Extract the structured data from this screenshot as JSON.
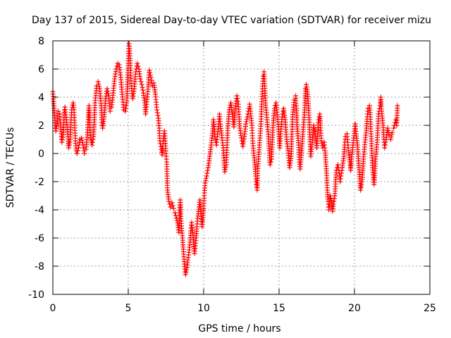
{
  "chart_data": {
    "type": "scatter",
    "title": "Day 137 of 2015, Sidereal Day-to-day VTEC variation (SDTVAR) for receiver mizu",
    "xlabel": "GPS time / hours",
    "ylabel": "SDTVAR / TECUs",
    "xlim": [
      0,
      25
    ],
    "ylim": [
      -10,
      8
    ],
    "x_ticks": [
      0,
      5,
      10,
      15,
      20,
      25
    ],
    "x_tick_labels": [
      "0",
      "5",
      "10",
      "15",
      "20",
      "25"
    ],
    "y_ticks": [
      8,
      6,
      4,
      2,
      0,
      -2,
      -4,
      -6,
      -8,
      -10
    ],
    "y_tick_labels": [
      "8",
      "6",
      "4",
      "2",
      "0",
      "-2",
      "-4",
      "-6",
      "-8",
      "-10"
    ],
    "grid": true,
    "marker": "+",
    "color": "#ff0000",
    "trace": [
      [
        0.0,
        4.4
      ],
      [
        0.05,
        3.7
      ],
      [
        0.1,
        2.9
      ],
      [
        0.15,
        2.0
      ],
      [
        0.2,
        1.6
      ],
      [
        0.3,
        2.3
      ],
      [
        0.35,
        3.0
      ],
      [
        0.45,
        2.8
      ],
      [
        0.5,
        2.2
      ],
      [
        0.55,
        1.4
      ],
      [
        0.6,
        0.8
      ],
      [
        0.7,
        1.5
      ],
      [
        0.75,
        2.9
      ],
      [
        0.8,
        3.3
      ],
      [
        0.9,
        2.4
      ],
      [
        1.0,
        1.2
      ],
      [
        1.05,
        0.4
      ],
      [
        1.15,
        1.0
      ],
      [
        1.2,
        2.2
      ],
      [
        1.25,
        3.1
      ],
      [
        1.35,
        3.6
      ],
      [
        1.4,
        3.1
      ],
      [
        1.45,
        2.0
      ],
      [
        1.5,
        0.9
      ],
      [
        1.55,
        0.2
      ],
      [
        1.6,
        0.0
      ],
      [
        1.7,
        0.4
      ],
      [
        1.8,
        1.0
      ],
      [
        1.9,
        1.1
      ],
      [
        2.0,
        0.6
      ],
      [
        2.1,
        0.0
      ],
      [
        2.2,
        0.3
      ],
      [
        2.3,
        1.5
      ],
      [
        2.35,
        2.6
      ],
      [
        2.4,
        3.4
      ],
      [
        2.45,
        2.2
      ],
      [
        2.5,
        1.1
      ],
      [
        2.6,
        0.6
      ],
      [
        2.7,
        1.2
      ],
      [
        2.75,
        2.4
      ],
      [
        2.8,
        3.6
      ],
      [
        2.9,
        4.8
      ],
      [
        3.0,
        5.1
      ],
      [
        3.1,
        4.6
      ],
      [
        3.2,
        3.4
      ],
      [
        3.25,
        2.4
      ],
      [
        3.3,
        1.8
      ],
      [
        3.4,
        2.6
      ],
      [
        3.5,
        3.9
      ],
      [
        3.6,
        4.6
      ],
      [
        3.7,
        4.1
      ],
      [
        3.8,
        3.0
      ],
      [
        3.9,
        3.3
      ],
      [
        4.0,
        4.3
      ],
      [
        4.1,
        5.3
      ],
      [
        4.2,
        6.0
      ],
      [
        4.3,
        6.4
      ],
      [
        4.4,
        6.3
      ],
      [
        4.5,
        5.4
      ],
      [
        4.6,
        4.2
      ],
      [
        4.7,
        3.1
      ],
      [
        4.8,
        3.0
      ],
      [
        4.9,
        3.6
      ],
      [
        5.0,
        6.4
      ],
      [
        5.05,
        7.8
      ],
      [
        5.1,
        7.1
      ],
      [
        5.15,
        5.9
      ],
      [
        5.2,
        4.8
      ],
      [
        5.3,
        3.9
      ],
      [
        5.4,
        4.6
      ],
      [
        5.5,
        5.8
      ],
      [
        5.6,
        6.4
      ],
      [
        5.7,
        6.0
      ],
      [
        5.8,
        5.3
      ],
      [
        5.9,
        4.9
      ],
      [
        6.0,
        4.3
      ],
      [
        6.1,
        3.6
      ],
      [
        6.15,
        2.8
      ],
      [
        6.2,
        3.3
      ],
      [
        6.3,
        4.4
      ],
      [
        6.4,
        5.9
      ],
      [
        6.5,
        5.4
      ],
      [
        6.6,
        4.8
      ],
      [
        6.7,
        5.0
      ],
      [
        6.8,
        4.2
      ],
      [
        6.9,
        3.1
      ],
      [
        7.0,
        2.5
      ],
      [
        7.05,
        1.8
      ],
      [
        7.1,
        0.9
      ],
      [
        7.2,
        0.3
      ],
      [
        7.25,
        -0.1
      ],
      [
        7.3,
        0.7
      ],
      [
        7.4,
        1.6
      ],
      [
        7.45,
        0.9
      ],
      [
        7.5,
        0.0
      ],
      [
        7.55,
        -0.6
      ],
      [
        7.6,
        -2.6
      ],
      [
        7.7,
        -3.4
      ],
      [
        7.8,
        -3.8
      ],
      [
        7.9,
        -3.5
      ],
      [
        8.0,
        -3.9
      ],
      [
        8.1,
        -4.2
      ],
      [
        8.2,
        -4.6
      ],
      [
        8.3,
        -5.1
      ],
      [
        8.35,
        -5.6
      ],
      [
        8.4,
        -4.4
      ],
      [
        8.45,
        -3.3
      ],
      [
        8.5,
        -4.8
      ],
      [
        8.6,
        -6.0
      ],
      [
        8.65,
        -6.8
      ],
      [
        8.7,
        -7.5
      ],
      [
        8.75,
        -8.2
      ],
      [
        8.8,
        -8.6
      ],
      [
        8.9,
        -8.1
      ],
      [
        9.0,
        -7.2
      ],
      [
        9.1,
        -6.3
      ],
      [
        9.15,
        -5.5
      ],
      [
        9.2,
        -4.9
      ],
      [
        9.3,
        -5.8
      ],
      [
        9.35,
        -6.6
      ],
      [
        9.4,
        -7.1
      ],
      [
        9.5,
        -6.0
      ],
      [
        9.55,
        -5.2
      ],
      [
        9.6,
        -4.6
      ],
      [
        9.7,
        -3.8
      ],
      [
        9.75,
        -3.3
      ],
      [
        9.8,
        -4.1
      ],
      [
        9.9,
        -5.2
      ],
      [
        10.0,
        -3.9
      ],
      [
        10.05,
        -2.8
      ],
      [
        10.1,
        -2.1
      ],
      [
        10.2,
        -1.6
      ],
      [
        10.3,
        -1.0
      ],
      [
        10.4,
        -0.2
      ],
      [
        10.5,
        0.6
      ],
      [
        10.6,
        1.6
      ],
      [
        10.65,
        2.4
      ],
      [
        10.7,
        1.9
      ],
      [
        10.75,
        1.2
      ],
      [
        10.85,
        0.6
      ],
      [
        10.9,
        1.2
      ],
      [
        11.0,
        2.1
      ],
      [
        11.05,
        2.8
      ],
      [
        11.1,
        2.1
      ],
      [
        11.2,
        1.3
      ],
      [
        11.3,
        0.4
      ],
      [
        11.35,
        -0.5
      ],
      [
        11.4,
        -1.3
      ],
      [
        11.5,
        -0.8
      ],
      [
        11.55,
        0.6
      ],
      [
        11.6,
        1.8
      ],
      [
        11.7,
        3.1
      ],
      [
        11.8,
        3.6
      ],
      [
        11.9,
        2.8
      ],
      [
        12.0,
        1.9
      ],
      [
        12.05,
        2.4
      ],
      [
        12.1,
        3.2
      ],
      [
        12.2,
        4.1
      ],
      [
        12.3,
        3.5
      ],
      [
        12.35,
        2.6
      ],
      [
        12.4,
        1.8
      ],
      [
        12.5,
        1.1
      ],
      [
        12.6,
        0.5
      ],
      [
        12.7,
        1.2
      ],
      [
        12.8,
        2.1
      ],
      [
        12.9,
        2.6
      ],
      [
        13.0,
        3.2
      ],
      [
        13.05,
        3.5
      ],
      [
        13.1,
        3.0
      ],
      [
        13.2,
        2.0
      ],
      [
        13.25,
        0.9
      ],
      [
        13.3,
        0.2
      ],
      [
        13.4,
        -0.8
      ],
      [
        13.45,
        -1.6
      ],
      [
        13.5,
        -2.2
      ],
      [
        13.55,
        -2.6
      ],
      [
        13.6,
        -0.9
      ],
      [
        13.7,
        0.6
      ],
      [
        13.8,
        2.1
      ],
      [
        13.85,
        3.5
      ],
      [
        13.9,
        4.6
      ],
      [
        13.95,
        5.5
      ],
      [
        14.0,
        5.8
      ],
      [
        14.05,
        4.8
      ],
      [
        14.1,
        3.6
      ],
      [
        14.2,
        2.4
      ],
      [
        14.3,
        1.2
      ],
      [
        14.35,
        0.2
      ],
      [
        14.4,
        -0.8
      ],
      [
        14.5,
        -0.4
      ],
      [
        14.55,
        0.8
      ],
      [
        14.6,
        2.0
      ],
      [
        14.7,
        3.2
      ],
      [
        14.8,
        3.6
      ],
      [
        14.9,
        2.6
      ],
      [
        15.0,
        1.2
      ],
      [
        15.05,
        0.4
      ],
      [
        15.1,
        1.4
      ],
      [
        15.2,
        2.6
      ],
      [
        15.3,
        3.2
      ],
      [
        15.4,
        2.4
      ],
      [
        15.5,
        1.0
      ],
      [
        15.6,
        0.2
      ],
      [
        15.7,
        -1.0
      ],
      [
        15.8,
        -0.2
      ],
      [
        15.85,
        1.2
      ],
      [
        15.9,
        2.6
      ],
      [
        16.0,
        3.8
      ],
      [
        16.1,
        4.1
      ],
      [
        16.15,
        3.2
      ],
      [
        16.2,
        1.9
      ],
      [
        16.3,
        0.6
      ],
      [
        16.35,
        -0.6
      ],
      [
        16.4,
        -1.1
      ],
      [
        16.5,
        0.2
      ],
      [
        16.6,
        1.7
      ],
      [
        16.7,
        3.1
      ],
      [
        16.75,
        4.6
      ],
      [
        16.8,
        4.9
      ],
      [
        16.9,
        4.2
      ],
      [
        17.0,
        2.4
      ],
      [
        17.05,
        1.0
      ],
      [
        17.1,
        -0.2
      ],
      [
        17.2,
        0.8
      ],
      [
        17.3,
        2.0
      ],
      [
        17.4,
        1.4
      ],
      [
        17.5,
        0.4
      ],
      [
        17.55,
        1.2
      ],
      [
        17.6,
        2.2
      ],
      [
        17.7,
        2.8
      ],
      [
        17.75,
        2.0
      ],
      [
        17.8,
        0.9
      ],
      [
        17.9,
        0.4
      ],
      [
        18.0,
        0.8
      ],
      [
        18.05,
        0.2
      ],
      [
        18.1,
        -0.6
      ],
      [
        18.15,
        -1.4
      ],
      [
        18.2,
        -2.6
      ],
      [
        18.25,
        -3.4
      ],
      [
        18.3,
        -4.0
      ],
      [
        18.35,
        -3.6
      ],
      [
        18.4,
        -3.0
      ],
      [
        18.5,
        -3.5
      ],
      [
        18.55,
        -4.1
      ],
      [
        18.6,
        -3.6
      ],
      [
        18.7,
        -3.0
      ],
      [
        18.75,
        -2.0
      ],
      [
        18.8,
        -1.2
      ],
      [
        18.9,
        -0.8
      ],
      [
        19.0,
        -1.4
      ],
      [
        19.05,
        -2.0
      ],
      [
        19.1,
        -1.6
      ],
      [
        19.2,
        -1.0
      ],
      [
        19.3,
        -0.2
      ],
      [
        19.35,
        0.6
      ],
      [
        19.4,
        1.2
      ],
      [
        19.5,
        1.4
      ],
      [
        19.55,
        0.8
      ],
      [
        19.6,
        0.2
      ],
      [
        19.7,
        -0.6
      ],
      [
        19.75,
        -1.2
      ],
      [
        19.8,
        -0.4
      ],
      [
        19.9,
        0.6
      ],
      [
        20.0,
        1.6
      ],
      [
        20.05,
        2.1
      ],
      [
        20.1,
        1.4
      ],
      [
        20.2,
        0.6
      ],
      [
        20.25,
        -0.2
      ],
      [
        20.3,
        -1.0
      ],
      [
        20.35,
        -1.8
      ],
      [
        20.4,
        -2.6
      ],
      [
        20.5,
        -2.0
      ],
      [
        20.55,
        -1.2
      ],
      [
        20.6,
        -0.4
      ],
      [
        20.7,
        0.8
      ],
      [
        20.8,
        1.8
      ],
      [
        20.85,
        2.6
      ],
      [
        20.9,
        3.2
      ],
      [
        21.0,
        3.4
      ],
      [
        21.05,
        2.6
      ],
      [
        21.1,
        1.4
      ],
      [
        21.15,
        0.2
      ],
      [
        21.2,
        -1.0
      ],
      [
        21.3,
        -2.2
      ],
      [
        21.35,
        -1.4
      ],
      [
        21.4,
        -0.4
      ],
      [
        21.5,
        0.8
      ],
      [
        21.55,
        1.8
      ],
      [
        21.6,
        2.8
      ],
      [
        21.7,
        3.4
      ],
      [
        21.75,
        4.0
      ],
      [
        21.8,
        3.0
      ],
      [
        21.9,
        2.0
      ],
      [
        21.95,
        1.0
      ],
      [
        22.0,
        0.4
      ],
      [
        22.1,
        1.0
      ],
      [
        22.2,
        1.8
      ],
      [
        22.3,
        1.3
      ],
      [
        22.4,
        1.0
      ],
      [
        22.5,
        1.5
      ],
      [
        22.6,
        1.8
      ],
      [
        22.7,
        2.2
      ],
      [
        22.75,
        2.4
      ],
      [
        22.8,
        2.0
      ],
      [
        22.85,
        3.4
      ]
    ]
  }
}
